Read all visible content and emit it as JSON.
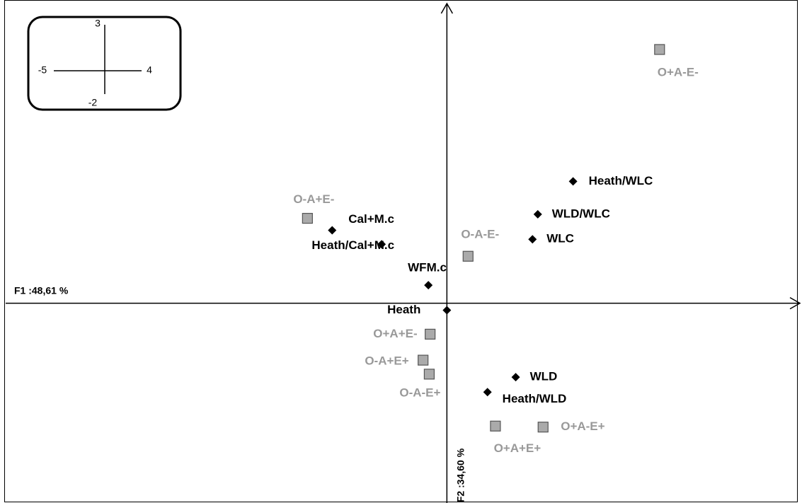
{
  "chart_data": {
    "type": "scatter",
    "xlabel": "F1 :48,61 %",
    "ylabel": "F2 :34,60 %",
    "xlim": [
      -5,
      4
    ],
    "ylim": [
      -2,
      3
    ],
    "series": [
      {
        "color": "#000000",
        "marker": "diamond",
        "labels": [
          "Heath/WLC",
          "WLD/WLC",
          "WLC",
          "Cal+M.c",
          "Heath/Cal+M.c",
          "WFM.c",
          "Heath",
          "WLD",
          "Heath/WLD"
        ],
        "x": [
          1.43,
          1.03,
          0.97,
          -1.3,
          -0.74,
          -0.21,
          0.0,
          0.78,
          0.46
        ],
        "values": [
          1.22,
          0.89,
          0.64,
          0.73,
          0.59,
          0.18,
          -0.07,
          -0.74,
          -0.89
        ]
      },
      {
        "color": "#999999",
        "marker": "square",
        "labels": [
          "O+A-E-",
          "O-A+E-",
          "O-A-E-",
          "O+A+E-",
          "O-A+E+",
          "O-A-E+",
          "O+A+E+",
          "O+A-E+"
        ],
        "x": [
          2.41,
          -1.58,
          0.24,
          -0.19,
          -0.27,
          -0.2,
          0.55,
          1.09
        ],
        "values": [
          2.54,
          0.85,
          0.47,
          -0.31,
          -0.57,
          -0.71,
          -1.23,
          -1.24
        ]
      }
    ]
  }
}
